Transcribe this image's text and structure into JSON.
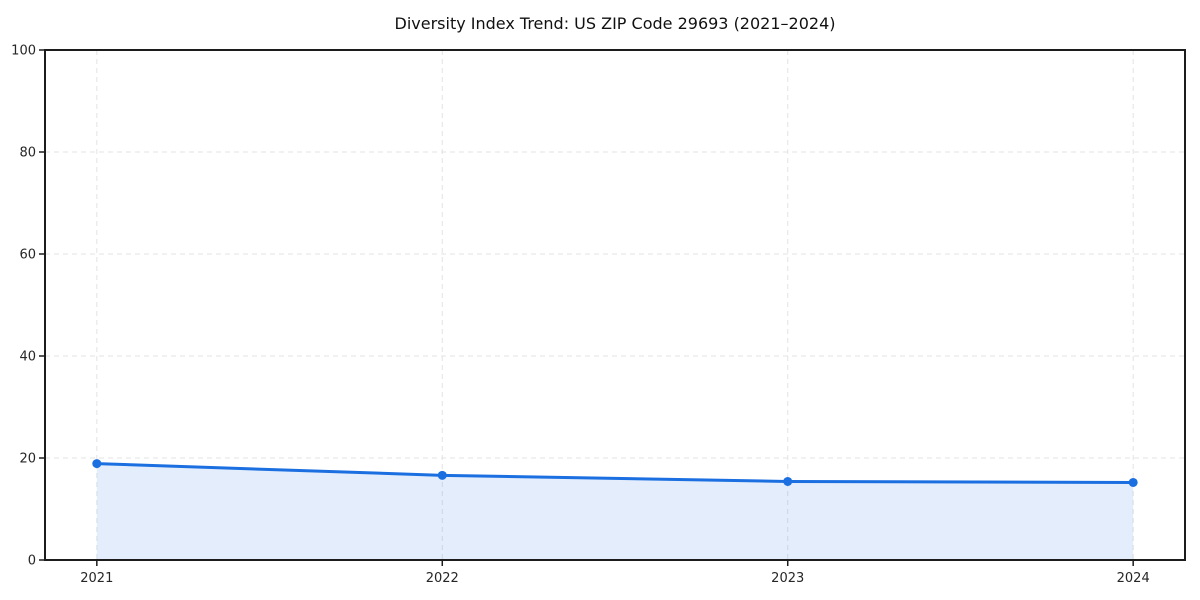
{
  "chart_data": {
    "type": "line",
    "title": "Diversity Index Trend: US ZIP Code 29693 (2021–2024)",
    "x": [
      2021,
      2022,
      2023,
      2024
    ],
    "values": [
      18.9,
      16.6,
      15.4,
      15.2
    ],
    "area_fill": true,
    "xlabel": "",
    "ylabel": "",
    "xticks": [
      2021,
      2022,
      2023,
      2024
    ],
    "yticks": [
      0,
      20,
      40,
      60,
      80,
      100
    ],
    "xlim": [
      2020.85,
      2024.15
    ],
    "ylim": [
      0,
      100
    ],
    "grid": "dashed-both-axes",
    "legend": "none",
    "marker": "circle",
    "colors": {
      "line": "#1b6fe0",
      "marker": "#1b6fe0",
      "fill": "rgba(27,111,224,0.12)",
      "grid": "#e3e3e3",
      "axis_frame": "#1c1c1c",
      "tick_label": "#262626",
      "background": "#ffffff"
    }
  }
}
